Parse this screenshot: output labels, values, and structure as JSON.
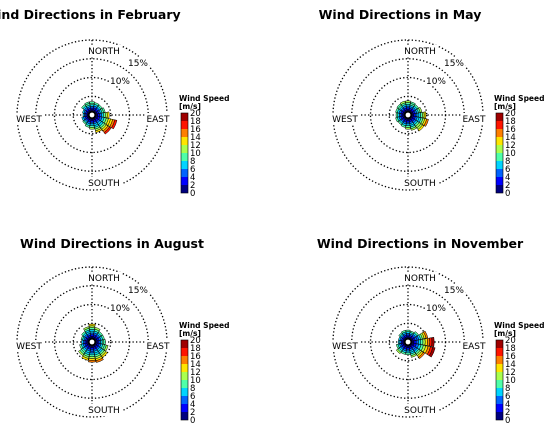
{
  "chart_data": {
    "type": "polar",
    "panels": [
      {
        "title": "Wind Directions in February",
        "ring_labels": [
          "10%",
          "15%"
        ],
        "direction_labels": {
          "north": "NORTH",
          "south": "SOUTH",
          "east": "EAST",
          "west": "WEST"
        },
        "sectors": [
          {
            "direction_deg": 0,
            "frequency_pct": 3.6
          },
          {
            "direction_deg": 22.5,
            "frequency_pct": 3.4
          },
          {
            "direction_deg": 45,
            "frequency_pct": 3.3
          },
          {
            "direction_deg": 67.5,
            "frequency_pct": 3.6
          },
          {
            "direction_deg": 90,
            "frequency_pct": 4.6
          },
          {
            "direction_deg": 112.5,
            "frequency_pct": 6.8
          },
          {
            "direction_deg": 135,
            "frequency_pct": 6.2
          },
          {
            "direction_deg": 157.5,
            "frequency_pct": 4.8
          },
          {
            "direction_deg": 180,
            "frequency_pct": 3.8
          },
          {
            "direction_deg": 202.5,
            "frequency_pct": 3.4
          },
          {
            "direction_deg": 225,
            "frequency_pct": 3.0
          },
          {
            "direction_deg": 247.5,
            "frequency_pct": 2.8
          },
          {
            "direction_deg": 270,
            "frequency_pct": 2.4
          },
          {
            "direction_deg": 292.5,
            "frequency_pct": 2.6
          },
          {
            "direction_deg": 315,
            "frequency_pct": 3.4
          },
          {
            "direction_deg": 337.5,
            "frequency_pct": 3.6
          }
        ]
      },
      {
        "title": "Wind Directions in May",
        "ring_labels": [
          "10%",
          "15%"
        ],
        "direction_labels": {
          "north": "NORTH",
          "south": "SOUTH",
          "east": "EAST",
          "west": "WEST"
        },
        "sectors": [
          {
            "direction_deg": 0,
            "frequency_pct": 3.8
          },
          {
            "direction_deg": 22.5,
            "frequency_pct": 3.6
          },
          {
            "direction_deg": 45,
            "frequency_pct": 3.4
          },
          {
            "direction_deg": 67.5,
            "frequency_pct": 3.8
          },
          {
            "direction_deg": 90,
            "frequency_pct": 4.8
          },
          {
            "direction_deg": 112.5,
            "frequency_pct": 5.6
          },
          {
            "direction_deg": 135,
            "frequency_pct": 5.2
          },
          {
            "direction_deg": 157.5,
            "frequency_pct": 4.2
          },
          {
            "direction_deg": 180,
            "frequency_pct": 3.8
          },
          {
            "direction_deg": 202.5,
            "frequency_pct": 3.4
          },
          {
            "direction_deg": 225,
            "frequency_pct": 3.2
          },
          {
            "direction_deg": 247.5,
            "frequency_pct": 3.4
          },
          {
            "direction_deg": 270,
            "frequency_pct": 3.2
          },
          {
            "direction_deg": 292.5,
            "frequency_pct": 3.4
          },
          {
            "direction_deg": 315,
            "frequency_pct": 3.6
          },
          {
            "direction_deg": 337.5,
            "frequency_pct": 3.8
          }
        ]
      },
      {
        "title": "Wind Directions in August",
        "ring_labels": [
          "10%",
          "15%"
        ],
        "direction_labels": {
          "north": "NORTH",
          "south": "SOUTH",
          "east": "EAST",
          "west": "WEST"
        },
        "sectors": [
          {
            "direction_deg": 0,
            "frequency_pct": 4.8
          },
          {
            "direction_deg": 22.5,
            "frequency_pct": 4.0
          },
          {
            "direction_deg": 45,
            "frequency_pct": 3.4
          },
          {
            "direction_deg": 67.5,
            "frequency_pct": 3.4
          },
          {
            "direction_deg": 90,
            "frequency_pct": 3.6
          },
          {
            "direction_deg": 112.5,
            "frequency_pct": 4.4
          },
          {
            "direction_deg": 135,
            "frequency_pct": 5.0
          },
          {
            "direction_deg": 157.5,
            "frequency_pct": 5.6
          },
          {
            "direction_deg": 180,
            "frequency_pct": 5.4
          },
          {
            "direction_deg": 202.5,
            "frequency_pct": 5.0
          },
          {
            "direction_deg": 225,
            "frequency_pct": 4.4
          },
          {
            "direction_deg": 247.5,
            "frequency_pct": 3.4
          },
          {
            "direction_deg": 270,
            "frequency_pct": 2.8
          },
          {
            "direction_deg": 292.5,
            "frequency_pct": 3.0
          },
          {
            "direction_deg": 315,
            "frequency_pct": 3.4
          },
          {
            "direction_deg": 337.5,
            "frequency_pct": 4.2
          }
        ]
      },
      {
        "title": "Wind Directions in November",
        "ring_labels": [
          "10%",
          "15%"
        ],
        "direction_labels": {
          "north": "NORTH",
          "south": "SOUTH",
          "east": "EAST",
          "west": "WEST"
        },
        "sectors": [
          {
            "direction_deg": 0,
            "frequency_pct": 3.2
          },
          {
            "direction_deg": 22.5,
            "frequency_pct": 3.0
          },
          {
            "direction_deg": 45,
            "frequency_pct": 3.4
          },
          {
            "direction_deg": 67.5,
            "frequency_pct": 5.4
          },
          {
            "direction_deg": 90,
            "frequency_pct": 7.0
          },
          {
            "direction_deg": 112.5,
            "frequency_pct": 7.4
          },
          {
            "direction_deg": 135,
            "frequency_pct": 5.4
          },
          {
            "direction_deg": 157.5,
            "frequency_pct": 4.2
          },
          {
            "direction_deg": 180,
            "frequency_pct": 3.4
          },
          {
            "direction_deg": 202.5,
            "frequency_pct": 3.4
          },
          {
            "direction_deg": 225,
            "frequency_pct": 3.8
          },
          {
            "direction_deg": 247.5,
            "frequency_pct": 3.2
          },
          {
            "direction_deg": 270,
            "frequency_pct": 2.6
          },
          {
            "direction_deg": 292.5,
            "frequency_pct": 2.6
          },
          {
            "direction_deg": 315,
            "frequency_pct": 3.0
          },
          {
            "direction_deg": 337.5,
            "frequency_pct": 3.2
          }
        ]
      }
    ],
    "ring_values_pct": [
      5,
      10,
      15,
      20
    ],
    "colorbar": {
      "title_line1": "Wind Speed",
      "title_line2": "[m/s]",
      "ticks": [
        "20",
        "18",
        "16",
        "14",
        "12",
        "10",
        "8",
        "6",
        "4",
        "2",
        "0"
      ],
      "colors": [
        "#00007f",
        "#0000ff",
        "#0063ff",
        "#00d4ff",
        "#4effa9",
        "#a9ff4e",
        "#ffe500",
        "#ff7f00",
        "#ff1400",
        "#9f0000"
      ]
    }
  }
}
